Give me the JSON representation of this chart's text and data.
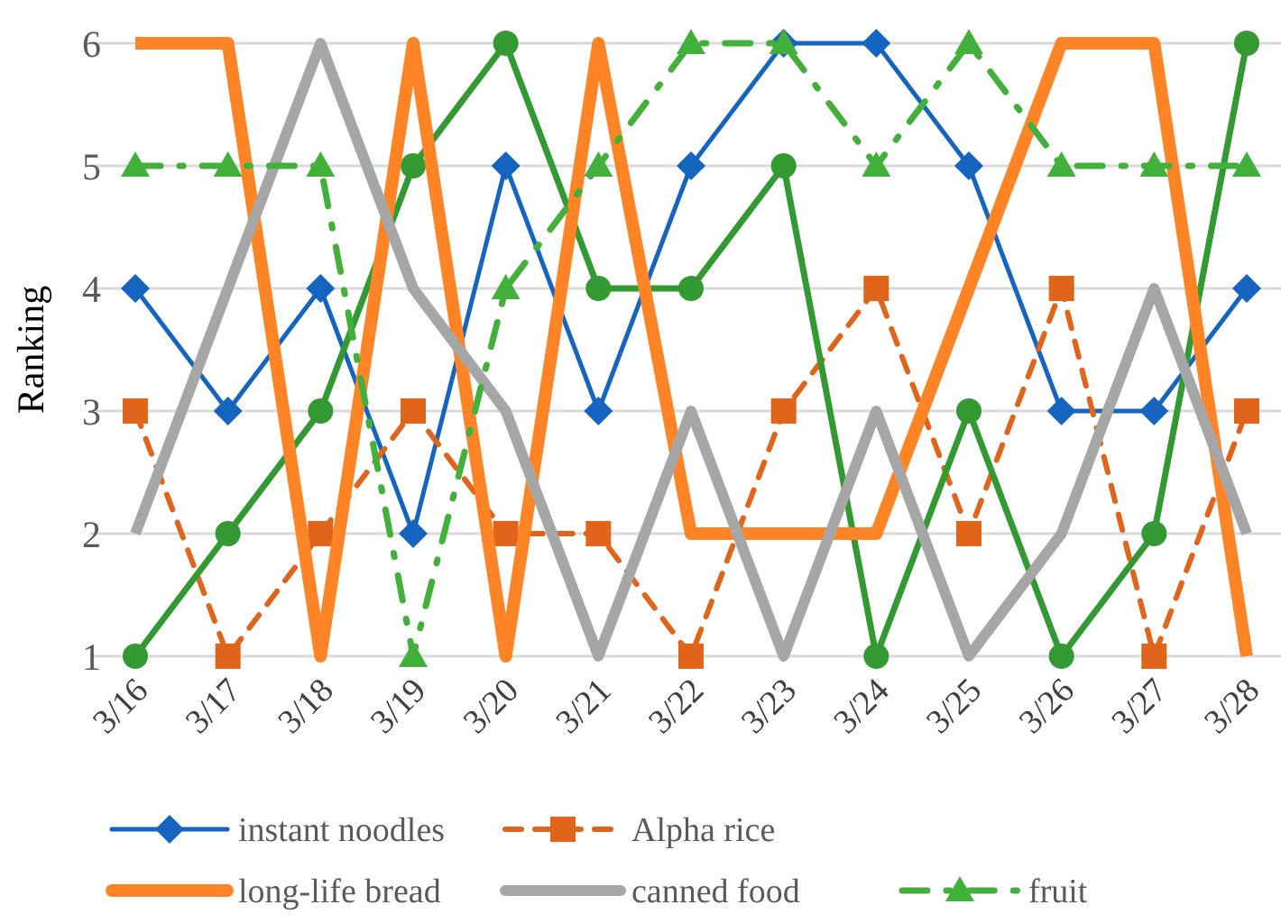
{
  "chart_data": {
    "type": "line",
    "ylabel": "Ranking",
    "categories": [
      "3/16",
      "3/17",
      "3/18",
      "3/19",
      "3/20",
      "3/21",
      "3/22",
      "3/23",
      "3/24",
      "3/25",
      "3/26",
      "3/27",
      "3/28"
    ],
    "series": [
      {
        "name": "instant noodles",
        "color": "#1565c0",
        "marker": "diamond",
        "line_style": "solid",
        "values": [
          4,
          3,
          4,
          2,
          5,
          3,
          5,
          6,
          6,
          5,
          3,
          3,
          4
        ]
      },
      {
        "name": "Alpha rice",
        "color": "#e0641a",
        "marker": "square",
        "line_style": "dashed",
        "values": [
          3,
          1,
          2,
          3,
          2,
          2,
          1,
          3,
          4,
          2,
          4,
          1,
          3
        ]
      },
      {
        "color": "#339933",
        "marker": "circle",
        "line_style": "solid",
        "values": [
          1,
          2,
          3,
          5,
          6,
          4,
          4,
          5,
          1,
          3,
          1,
          2,
          6
        ]
      },
      {
        "name": "long-life bread",
        "color": "#ff8426",
        "marker": "none",
        "line_style": "solid",
        "values": [
          6,
          6,
          1,
          6,
          1,
          6,
          2,
          2,
          2,
          4,
          6,
          6,
          1
        ]
      },
      {
        "name": "canned food",
        "color": "#a6a6a6",
        "marker": "none",
        "line_style": "solid",
        "values": [
          2,
          4,
          6,
          4,
          3,
          1,
          3,
          1,
          3,
          1,
          2,
          4,
          2
        ]
      },
      {
        "name": "fruit",
        "color": "#44b03c",
        "marker": "triangle",
        "line_style": "dashdot",
        "values": [
          5,
          5,
          5,
          1,
          4,
          5,
          6,
          6,
          5,
          6,
          5,
          5,
          5
        ]
      }
    ],
    "ylim": [
      1,
      6
    ],
    "yticks": [
      1,
      2,
      3,
      4,
      5,
      6
    ],
    "grid": "y",
    "legend": "bottom"
  }
}
